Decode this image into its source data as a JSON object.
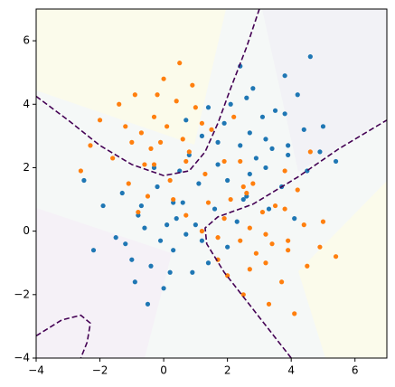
{
  "chart_data": {
    "type": "scatter",
    "xlim": [
      -4,
      7
    ],
    "ylim": [
      -4,
      7
    ],
    "xticks": [
      {
        "value": -4,
        "label": "−4"
      },
      {
        "value": -2,
        "label": "−2"
      },
      0,
      2,
      4,
      6
    ],
    "yticks": [
      {
        "value": -4,
        "label": "−4"
      },
      {
        "value": -2,
        "label": "−2"
      },
      0,
      2,
      4,
      6
    ],
    "series": [
      {
        "color": "#1f77b4",
        "x": [
          0.1,
          -0.8,
          1.2,
          -0.4,
          0.6,
          -1.5,
          0.3,
          -0.2,
          1.6,
          -1.0,
          0.9,
          -0.6,
          0.4,
          -1.9,
          2.0,
          0.0,
          -0.3,
          1.1,
          -1.3,
          0.7,
          -0.9,
          1.4,
          -0.1,
          0.5,
          -2.2,
          2.3,
          -0.7,
          0.2,
          1.0,
          -1.2,
          0.8,
          -0.5,
          2.6,
          -2.5,
          0.3,
          3.2,
          3.5,
          2.7,
          1.9,
          3.9,
          2.8,
          2.4,
          4.4,
          3.7,
          2.1,
          1.7,
          3.1,
          3.4,
          3.8,
          2.5,
          1.2,
          5.0,
          4.5,
          4.2,
          2.9,
          1.4,
          2.0,
          2.7,
          4.9,
          2.4,
          3.3,
          3.8,
          1.7,
          3.2,
          2.6,
          5.4,
          0.7,
          4.1,
          4.6,
          3.9
        ],
        "y": [
          0.2,
          0.5,
          -0.3,
          -1.1,
          0.9,
          -0.2,
          -0.6,
          1.4,
          0.7,
          -0.9,
          -1.3,
          0.1,
          0.4,
          0.8,
          -0.5,
          -1.8,
          2.0,
          1.5,
          1.2,
          -0.1,
          -1.6,
          -1.0,
          -0.3,
          1.9,
          -0.6,
          0.3,
          0.8,
          -1.3,
          0.2,
          -0.4,
          2.4,
          -2.3,
          1.1,
          1.6,
          0.9,
          2.9,
          3.8,
          1.8,
          3.4,
          2.4,
          4.5,
          2.7,
          3.2,
          1.4,
          4.0,
          2.1,
          3.6,
          2.6,
          4.9,
          1.0,
          3.0,
          3.3,
          1.9,
          4.3,
          2.3,
          3.9,
          1.6,
          3.1,
          2.5,
          5.2,
          0.7,
          3.7,
          2.8,
          2.0,
          4.2,
          2.2,
          3.5,
          0.4,
          5.5,
          2.7
        ]
      },
      {
        "color": "#ff7f0e",
        "x": [
          -0.1,
          0.8,
          -1.2,
          0.4,
          -0.6,
          1.5,
          -0.3,
          0.2,
          -1.6,
          1.0,
          -0.9,
          0.6,
          -0.4,
          1.9,
          -2.0,
          0.0,
          0.3,
          -1.1,
          1.3,
          -0.7,
          0.9,
          -1.4,
          0.1,
          -0.5,
          2.2,
          -2.3,
          0.7,
          -0.2,
          -1.0,
          1.2,
          -0.8,
          0.5,
          -2.6,
          2.5,
          -0.3,
          3.2,
          3.5,
          2.7,
          1.9,
          3.9,
          2.8,
          2.4,
          4.4,
          3.7,
          2.1,
          1.7,
          3.1,
          3.4,
          3.8,
          2.5,
          1.2,
          5.0,
          4.5,
          4.2,
          2.9,
          1.4,
          2.0,
          2.7,
          4.9,
          2.4,
          3.3,
          3.8,
          1.7,
          3.2,
          2.6,
          5.4,
          0.7,
          4.1,
          4.6,
          3.9
        ],
        "y": [
          2.8,
          2.5,
          3.3,
          4.1,
          2.1,
          3.2,
          3.6,
          1.6,
          2.3,
          3.9,
          4.3,
          2.9,
          2.6,
          2.2,
          3.5,
          4.8,
          1.0,
          1.5,
          1.8,
          3.1,
          4.6,
          4.0,
          3.3,
          1.1,
          3.6,
          2.7,
          2.2,
          4.3,
          2.8,
          3.4,
          0.6,
          5.3,
          1.9,
          1.4,
          2.1,
          -0.1,
          0.8,
          -1.2,
          0.4,
          -0.6,
          1.5,
          -0.3,
          0.2,
          -1.6,
          1.0,
          -0.9,
          0.6,
          -0.4,
          1.9,
          -2.0,
          0.0,
          0.3,
          -1.1,
          1.3,
          -0.7,
          0.9,
          -1.4,
          0.1,
          -0.5,
          2.2,
          -2.3,
          0.7,
          -0.2,
          -1.0,
          1.2,
          -0.8,
          0.5,
          -2.6,
          2.5,
          -0.3
        ]
      }
    ],
    "boundary_color": "#440154",
    "boundaries": [
      {
        "x": [
          -4,
          -3,
          -2,
          -1,
          0,
          0.8,
          1.3,
          1.7,
          2.1,
          2.6,
          3
        ],
        "y": [
          4.25,
          3.5,
          2.7,
          2.1,
          1.75,
          1.9,
          2.5,
          3.4,
          4.5,
          5.8,
          7
        ]
      },
      {
        "x": [
          4,
          3.3,
          2.6,
          1.9,
          1.35,
          1.3,
          1.7,
          2.8,
          4.2,
          5.5,
          7
        ],
        "y": [
          -4,
          -3.1,
          -2.2,
          -1.3,
          -0.4,
          0.1,
          0.45,
          0.85,
          1.7,
          2.6,
          3.5
        ]
      },
      {
        "x": [
          -4,
          -3.2,
          -2.6,
          -2.3,
          -2.4,
          -2.6
        ],
        "y": [
          -3.3,
          -2.8,
          -2.65,
          -2.9,
          -3.5,
          -4
        ]
      }
    ]
  }
}
